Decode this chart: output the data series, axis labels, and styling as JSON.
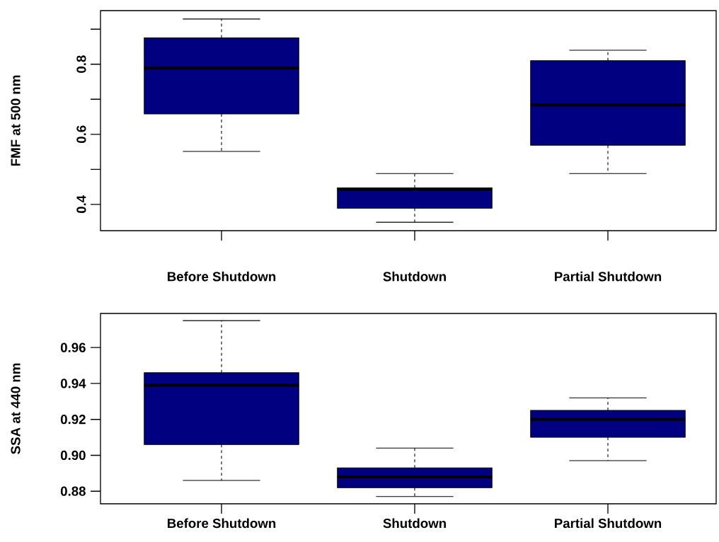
{
  "chart_data": [
    {
      "type": "box",
      "categories": [
        "Before Shutdown",
        "Shutdown",
        "Partial Shutdown"
      ],
      "ylabel": "FMF at 500 nm",
      "series": [
        {
          "color": "#000080",
          "boxes": [
            {
              "low": 0.551,
              "q1": 0.658,
              "median": 0.789,
              "q3": 0.875,
              "high": 0.929
            },
            {
              "low": 0.349,
              "q1": 0.389,
              "median": 0.443,
              "q3": 0.447,
              "high": 0.488
            },
            {
              "low": 0.488,
              "q1": 0.569,
              "median": 0.684,
              "q3": 0.81,
              "high": 0.84
            }
          ]
        }
      ],
      "ylim": [
        0.325,
        0.953
      ],
      "yticks": [
        0.4,
        {
          "value": 0.5,
          "label": null
        },
        0.6,
        {
          "value": 0.7,
          "label": null
        },
        0.8,
        {
          "value": 0.9,
          "label": null
        }
      ]
    },
    {
      "type": "box",
      "categories": [
        "Before Shutdown",
        "Shutdown",
        "Partial Shutdown"
      ],
      "ylabel": "SSA at 440 nm",
      "series": [
        {
          "color": "#000080",
          "boxes": [
            {
              "low": 0.886,
              "q1": 0.906,
              "median": 0.939,
              "q3": 0.946,
              "high": 0.975
            },
            {
              "low": 0.877,
              "q1": 0.882,
              "median": 0.888,
              "q3": 0.893,
              "high": 0.904
            },
            {
              "low": 0.897,
              "q1": 0.91,
              "median": 0.92,
              "q3": 0.925,
              "high": 0.932
            }
          ]
        }
      ],
      "ylim": [
        0.873,
        0.979
      ],
      "yticks": [
        0.88,
        {
          "value": 0.9,
          "label": "0.90"
        },
        0.92,
        0.94,
        0.96
      ]
    }
  ]
}
